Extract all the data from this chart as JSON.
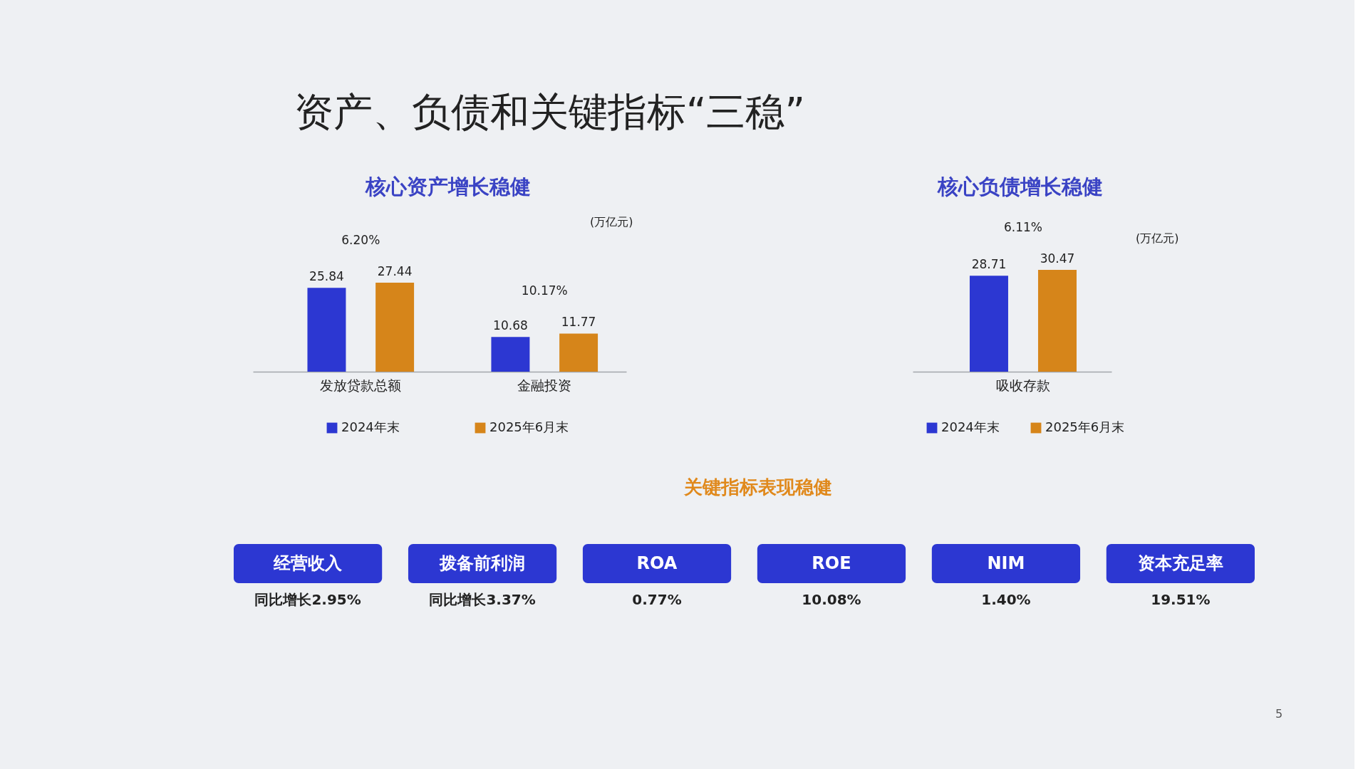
{
  "chart_data": [
    {
      "type": "other",
      "title": "资产、负债和关键指标“三稳”"
    },
    {
      "type": "bar",
      "title": "核心资产增长稳健",
      "ylabel": "(万亿元)",
      "categories": [
        "发放贷款总额",
        "金融投资"
      ],
      "series": [
        {
          "name": "2024年末",
          "color": "#2c37d2",
          "values": [
            25.84,
            10.68
          ]
        },
        {
          "name": "2025年6月末",
          "color": "#d6851a",
          "values": [
            27.44,
            11.77
          ]
        }
      ],
      "annotations": [
        "6.20%",
        "10.17%"
      ],
      "data_labels": true,
      "legend": "bottom"
    },
    {
      "type": "bar",
      "title": "核心负债增长稳健",
      "ylabel": "(万亿元)",
      "categories": [
        "吸收存款"
      ],
      "series": [
        {
          "name": "2024年末",
          "color": "#2c37d2",
          "values": [
            28.71
          ]
        },
        {
          "name": "2025年6月末",
          "color": "#d6851a",
          "values": [
            30.47
          ]
        }
      ],
      "annotations": [
        "6.11%"
      ],
      "data_labels": true,
      "legend": "bottom"
    },
    {
      "type": "other",
      "title": "关键指标表现稳健",
      "categories": [
        "经营收入",
        "拨备前利润",
        "ROA",
        "ROE",
        "NIM",
        "资本充足率"
      ],
      "value_labels": [
        "同比增长2.95%",
        "同比增长3.37%",
        "0.77%",
        "10.08%",
        "1.40%",
        "19.51%"
      ],
      "annotations": [
        "5"
      ]
    }
  ]
}
